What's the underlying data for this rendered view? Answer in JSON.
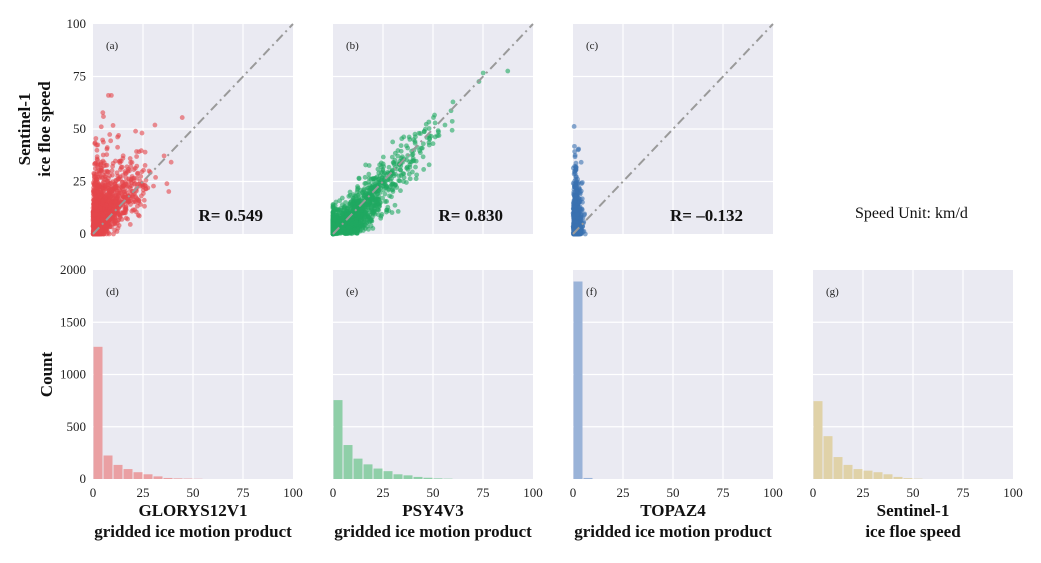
{
  "chart_data": [
    {
      "panel": "(a)",
      "type": "scatter",
      "color": "#e4464b",
      "xlim": [
        0,
        100
      ],
      "ylim": [
        0,
        100
      ],
      "xticks": [],
      "yticks": [
        0,
        25,
        50,
        75,
        100
      ],
      "ylabel": [
        "Sentinel-1",
        "ice floe speed"
      ],
      "annotation": "R= 0.549",
      "reference_line": "y = x (dash-dot)"
    },
    {
      "panel": "(b)",
      "type": "scatter",
      "color": "#20a860",
      "xlim": [
        0,
        100
      ],
      "ylim": [
        0,
        100
      ],
      "xticks": [],
      "yticks": [],
      "annotation": "R= 0.830",
      "reference_line": "y = x (dash-dot)"
    },
    {
      "panel": "(c)",
      "type": "scatter",
      "color": "#3a72b0",
      "xlim": [
        0,
        100
      ],
      "ylim": [
        0,
        100
      ],
      "xticks": [],
      "yticks": [],
      "annotation": "R= –0.132",
      "reference_line": "y = x (dash-dot)"
    },
    {
      "panel": "(d)",
      "type": "bar",
      "color": "#eaa0a3",
      "xlim": [
        0,
        100
      ],
      "ylim": [
        0,
        2000
      ],
      "bin_width": 5,
      "bins": [
        0,
        5,
        10,
        15,
        20,
        25,
        30,
        35,
        40,
        45,
        50
      ],
      "values": [
        1265,
        225,
        135,
        95,
        65,
        45,
        25,
        10,
        6,
        4,
        2
      ],
      "xticks": [
        0,
        25,
        50,
        75,
        100
      ],
      "yticks": [
        0,
        500,
        1000,
        1500,
        2000
      ],
      "ylabel": "Count",
      "xlabel": [
        "GLORYS12V1",
        "gridded ice motion product"
      ]
    },
    {
      "panel": "(e)",
      "type": "bar",
      "color": "#8fcfa8",
      "xlim": [
        0,
        100
      ],
      "ylim": [
        0,
        2000
      ],
      "bin_width": 5,
      "bins": [
        0,
        5,
        10,
        15,
        20,
        25,
        30,
        35,
        40,
        45,
        50,
        55
      ],
      "values": [
        755,
        325,
        195,
        140,
        100,
        75,
        45,
        35,
        20,
        12,
        6,
        3
      ],
      "xticks": [
        0,
        25,
        50,
        75,
        100
      ],
      "yticks": [],
      "xlabel": [
        "PSY4V3",
        "gridded ice motion product"
      ]
    },
    {
      "panel": "(f)",
      "type": "bar",
      "color": "#9ab3d8",
      "xlim": [
        0,
        100
      ],
      "ylim": [
        0,
        2000
      ],
      "bin_width": 5,
      "bins": [
        0,
        5
      ],
      "values": [
        1890,
        10
      ],
      "xticks": [
        0,
        25,
        50,
        75,
        100
      ],
      "yticks": [],
      "xlabel": [
        "TOPAZ4",
        "gridded ice motion product"
      ]
    },
    {
      "panel": "(g)",
      "type": "bar",
      "color": "#e0d2a8",
      "xlim": [
        0,
        100
      ],
      "ylim": [
        0,
        2000
      ],
      "bin_width": 5,
      "bins": [
        0,
        5,
        10,
        15,
        20,
        25,
        30,
        35,
        40,
        45,
        50
      ],
      "values": [
        745,
        410,
        210,
        135,
        95,
        80,
        65,
        45,
        20,
        8,
        3
      ],
      "xticks": [
        0,
        25,
        50,
        75,
        100
      ],
      "yticks": [],
      "xlabel": [
        "Sentinel-1",
        "ice floe speed"
      ]
    }
  ],
  "speed_unit_text": "Speed Unit: km/d"
}
